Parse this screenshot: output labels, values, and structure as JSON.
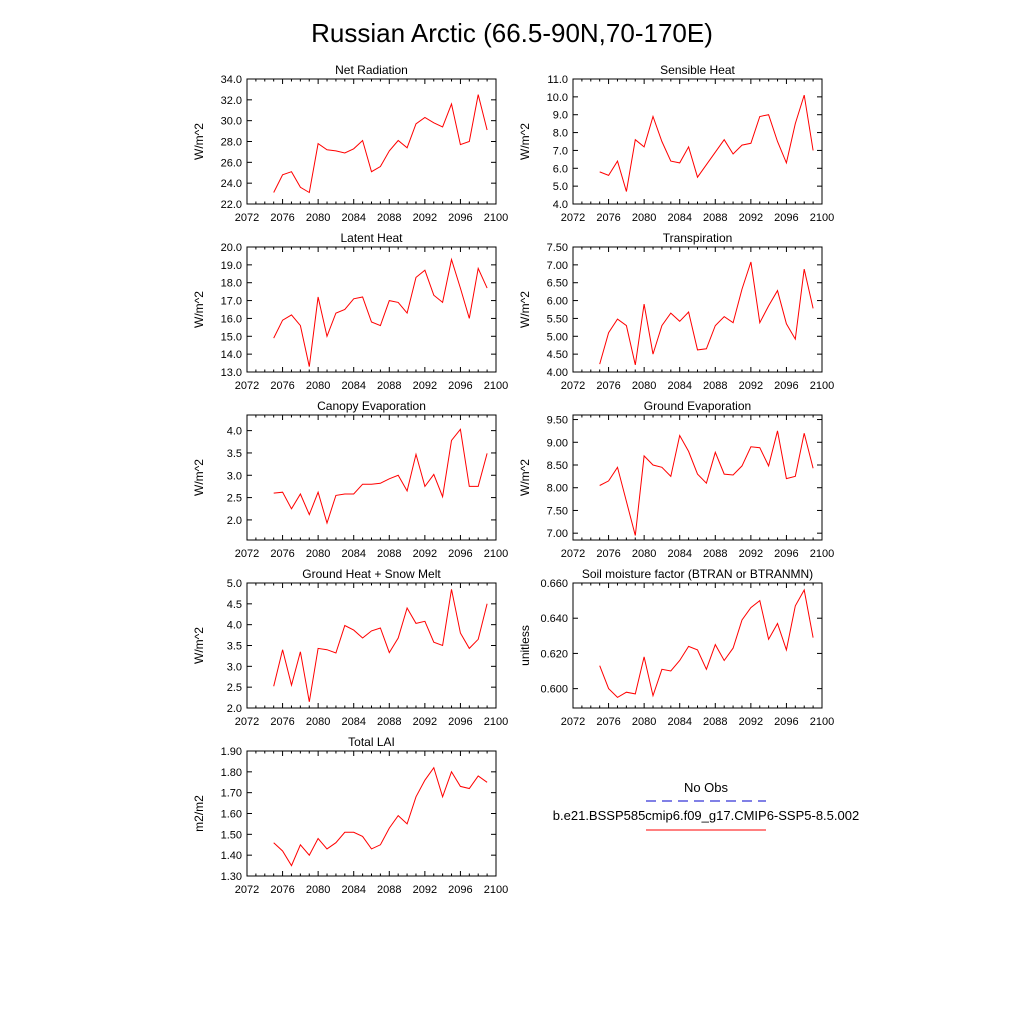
{
  "figure_title": "Russian Arctic (66.5-90N,70-170E)",
  "legend": {
    "entries": [
      {
        "label": "No Obs",
        "color": "#0000cc",
        "style": "dashed"
      },
      {
        "label": "b.e21.BSSP585cmip6.f09_g17.CMIP6-SSP5-8.5.002",
        "color": "#ff0000",
        "style": "solid"
      }
    ]
  },
  "chart_data": [
    {
      "type": "line",
      "title": "Net Radiation",
      "xlabel": "",
      "ylabel": "W/m^2",
      "xlim": [
        2072,
        2100
      ],
      "ylim": [
        22.0,
        34.0
      ],
      "xticks": [
        "2072",
        "2076",
        "2080",
        "2084",
        "2088",
        "2092",
        "2096",
        "2100"
      ],
      "yticks": [
        "22.0",
        "24.0",
        "26.0",
        "28.0",
        "30.0",
        "32.0",
        "34.0"
      ],
      "grid": false,
      "color": "#ff0000",
      "x": [
        2075,
        2076,
        2077,
        2078,
        2079,
        2080,
        2081,
        2082,
        2083,
        2084,
        2085,
        2086,
        2087,
        2088,
        2089,
        2090,
        2091,
        2092,
        2093,
        2094,
        2095,
        2096,
        2097,
        2098,
        2099
      ],
      "y": [
        23.1,
        24.8,
        25.1,
        23.6,
        23.1,
        27.8,
        27.2,
        27.1,
        26.9,
        27.3,
        28.1,
        25.1,
        25.6,
        27.1,
        28.1,
        27.4,
        29.7,
        30.3,
        29.8,
        29.4,
        31.6,
        27.7,
        28.0,
        32.5,
        29.1
      ]
    },
    {
      "type": "line",
      "title": "Sensible Heat",
      "xlabel": "",
      "ylabel": "W/m^2",
      "xlim": [
        2072,
        2100
      ],
      "ylim": [
        4.0,
        11.0
      ],
      "xticks": [
        "2072",
        "2076",
        "2080",
        "2084",
        "2088",
        "2092",
        "2096",
        "2100"
      ],
      "yticks": [
        "4.0",
        "5.0",
        "6.0",
        "7.0",
        "8.0",
        "9.0",
        "10.0",
        "11.0"
      ],
      "grid": false,
      "color": "#ff0000",
      "x": [
        2075,
        2076,
        2077,
        2078,
        2079,
        2080,
        2081,
        2082,
        2083,
        2084,
        2085,
        2086,
        2087,
        2088,
        2089,
        2090,
        2091,
        2092,
        2093,
        2094,
        2095,
        2096,
        2097,
        2098,
        2099
      ],
      "y": [
        5.8,
        5.6,
        6.4,
        4.7,
        7.6,
        7.2,
        8.9,
        7.5,
        6.4,
        6.3,
        7.2,
        5.5,
        6.2,
        6.9,
        7.6,
        6.8,
        7.3,
        7.4,
        8.9,
        9.0,
        7.5,
        6.3,
        8.5,
        10.1,
        7.0
      ]
    },
    {
      "type": "line",
      "title": "Latent Heat",
      "xlabel": "",
      "ylabel": "W/m^2",
      "xlim": [
        2072,
        2100
      ],
      "ylim": [
        13.0,
        20.0
      ],
      "xticks": [
        "2072",
        "2076",
        "2080",
        "2084",
        "2088",
        "2092",
        "2096",
        "2100"
      ],
      "yticks": [
        "13.0",
        "14.0",
        "15.0",
        "16.0",
        "17.0",
        "18.0",
        "19.0",
        "20.0"
      ],
      "grid": false,
      "color": "#ff0000",
      "x": [
        2075,
        2076,
        2077,
        2078,
        2079,
        2080,
        2081,
        2082,
        2083,
        2084,
        2085,
        2086,
        2087,
        2088,
        2089,
        2090,
        2091,
        2092,
        2093,
        2094,
        2095,
        2096,
        2097,
        2098,
        2099
      ],
      "y": [
        14.9,
        15.9,
        16.2,
        15.6,
        13.3,
        17.2,
        15.0,
        16.3,
        16.5,
        17.1,
        17.2,
        15.8,
        15.6,
        17.0,
        16.9,
        16.3,
        18.3,
        18.7,
        17.3,
        16.9,
        19.3,
        17.7,
        16.0,
        18.8,
        17.7
      ]
    },
    {
      "type": "line",
      "title": "Transpiration",
      "xlabel": "",
      "ylabel": "W/m^2",
      "xlim": [
        2072,
        2100
      ],
      "ylim": [
        4.0,
        7.5
      ],
      "xticks": [
        "2072",
        "2076",
        "2080",
        "2084",
        "2088",
        "2092",
        "2096",
        "2100"
      ],
      "yticks": [
        "4.00",
        "4.50",
        "5.00",
        "5.50",
        "6.00",
        "6.50",
        "7.00",
        "7.50"
      ],
      "grid": false,
      "color": "#ff0000",
      "x": [
        2075,
        2076,
        2077,
        2078,
        2079,
        2080,
        2081,
        2082,
        2083,
        2084,
        2085,
        2086,
        2087,
        2088,
        2089,
        2090,
        2091,
        2092,
        2093,
        2094,
        2095,
        2096,
        2097,
        2098,
        2099
      ],
      "y": [
        4.22,
        5.1,
        5.48,
        5.3,
        4.2,
        5.9,
        4.5,
        5.3,
        5.65,
        5.42,
        5.68,
        4.62,
        4.65,
        5.3,
        5.55,
        5.38,
        6.32,
        7.08,
        5.38,
        5.85,
        6.28,
        5.35,
        4.92,
        6.88,
        5.78
      ]
    },
    {
      "type": "line",
      "title": "Canopy Evaporation",
      "xlabel": "",
      "ylabel": "W/m^2",
      "xlim": [
        2072,
        2100
      ],
      "ylim": [
        1.55,
        4.35
      ],
      "xticks": [
        "2072",
        "2076",
        "2080",
        "2084",
        "2088",
        "2092",
        "2096",
        "2100"
      ],
      "yticks": [
        "2.0",
        "2.5",
        "3.0",
        "3.5",
        "4.0"
      ],
      "grid": false,
      "color": "#ff0000",
      "x": [
        2075,
        2076,
        2077,
        2078,
        2079,
        2080,
        2081,
        2082,
        2083,
        2084,
        2085,
        2086,
        2087,
        2088,
        2089,
        2090,
        2091,
        2092,
        2093,
        2094,
        2095,
        2096,
        2097,
        2098,
        2099
      ],
      "y": [
        2.6,
        2.62,
        2.25,
        2.58,
        2.12,
        2.62,
        1.93,
        2.55,
        2.58,
        2.58,
        2.8,
        2.8,
        2.82,
        2.92,
        3.0,
        2.65,
        3.47,
        2.75,
        3.02,
        2.52,
        3.78,
        4.03,
        2.75,
        2.75,
        3.49
      ]
    },
    {
      "type": "line",
      "title": "Ground Evaporation",
      "xlabel": "",
      "ylabel": "W/m^2",
      "xlim": [
        2072,
        2100
      ],
      "ylim": [
        6.85,
        9.6
      ],
      "xticks": [
        "2072",
        "2076",
        "2080",
        "2084",
        "2088",
        "2092",
        "2096",
        "2100"
      ],
      "yticks": [
        "7.00",
        "7.50",
        "8.00",
        "8.50",
        "9.00",
        "9.50"
      ],
      "grid": false,
      "color": "#ff0000",
      "x": [
        2075,
        2076,
        2077,
        2078,
        2079,
        2080,
        2081,
        2082,
        2083,
        2084,
        2085,
        2086,
        2087,
        2088,
        2089,
        2090,
        2091,
        2092,
        2093,
        2094,
        2095,
        2096,
        2097,
        2098,
        2099
      ],
      "y": [
        8.05,
        8.15,
        8.45,
        7.7,
        6.95,
        8.7,
        8.5,
        8.45,
        8.25,
        9.15,
        8.8,
        8.3,
        8.1,
        8.78,
        8.3,
        8.28,
        8.48,
        8.9,
        8.88,
        8.48,
        9.25,
        8.2,
        8.25,
        9.2,
        8.43
      ]
    },
    {
      "type": "line",
      "title": "Ground Heat + Snow Melt",
      "xlabel": "",
      "ylabel": "W/m^2",
      "xlim": [
        2072,
        2100
      ],
      "ylim": [
        2.0,
        5.0
      ],
      "xticks": [
        "2072",
        "2076",
        "2080",
        "2084",
        "2088",
        "2092",
        "2096",
        "2100"
      ],
      "yticks": [
        "2.0",
        "2.5",
        "3.0",
        "3.5",
        "4.0",
        "4.5",
        "5.0"
      ],
      "grid": false,
      "color": "#ff0000",
      "x": [
        2075,
        2076,
        2077,
        2078,
        2079,
        2080,
        2081,
        2082,
        2083,
        2084,
        2085,
        2086,
        2087,
        2088,
        2089,
        2090,
        2091,
        2092,
        2093,
        2094,
        2095,
        2096,
        2097,
        2098,
        2099
      ],
      "y": [
        2.52,
        3.4,
        2.55,
        3.35,
        2.15,
        3.43,
        3.4,
        3.32,
        3.98,
        3.87,
        3.68,
        3.85,
        3.92,
        3.33,
        3.68,
        4.4,
        4.03,
        4.08,
        3.58,
        3.5,
        4.85,
        3.8,
        3.43,
        3.65,
        4.5
      ]
    },
    {
      "type": "line",
      "title": "Soil moisture factor (BTRAN or BTRANMN)",
      "xlabel": "",
      "ylabel": "unitless",
      "xlim": [
        2072,
        2100
      ],
      "ylim": [
        0.589,
        0.66
      ],
      "xticks": [
        "2072",
        "2076",
        "2080",
        "2084",
        "2088",
        "2092",
        "2096",
        "2100"
      ],
      "yticks": [
        "0.600",
        "0.620",
        "0.640",
        "0.660"
      ],
      "grid": false,
      "color": "#ff0000",
      "x": [
        2075,
        2076,
        2077,
        2078,
        2079,
        2080,
        2081,
        2082,
        2083,
        2084,
        2085,
        2086,
        2087,
        2088,
        2089,
        2090,
        2091,
        2092,
        2093,
        2094,
        2095,
        2096,
        2097,
        2098,
        2099
      ],
      "y": [
        0.613,
        0.6,
        0.595,
        0.598,
        0.597,
        0.618,
        0.596,
        0.611,
        0.61,
        0.616,
        0.624,
        0.622,
        0.611,
        0.625,
        0.616,
        0.623,
        0.639,
        0.646,
        0.65,
        0.628,
        0.637,
        0.622,
        0.647,
        0.656,
        0.629
      ]
    },
    {
      "type": "line",
      "title": "Total LAI",
      "xlabel": "",
      "ylabel": "m2/m2",
      "xlim": [
        2072,
        2100
      ],
      "ylim": [
        1.3,
        1.9
      ],
      "xticks": [
        "2072",
        "2076",
        "2080",
        "2084",
        "2088",
        "2092",
        "2096",
        "2100"
      ],
      "yticks": [
        "1.30",
        "1.40",
        "1.50",
        "1.60",
        "1.70",
        "1.80",
        "1.90"
      ],
      "grid": false,
      "color": "#ff0000",
      "x": [
        2075,
        2076,
        2077,
        2078,
        2079,
        2080,
        2081,
        2082,
        2083,
        2084,
        2085,
        2086,
        2087,
        2088,
        2089,
        2090,
        2091,
        2092,
        2093,
        2094,
        2095,
        2096,
        2097,
        2098,
        2099
      ],
      "y": [
        1.46,
        1.42,
        1.35,
        1.45,
        1.4,
        1.48,
        1.43,
        1.46,
        1.51,
        1.51,
        1.49,
        1.43,
        1.45,
        1.53,
        1.59,
        1.55,
        1.68,
        1.76,
        1.82,
        1.68,
        1.8,
        1.73,
        1.72,
        1.78,
        1.75
      ]
    }
  ]
}
